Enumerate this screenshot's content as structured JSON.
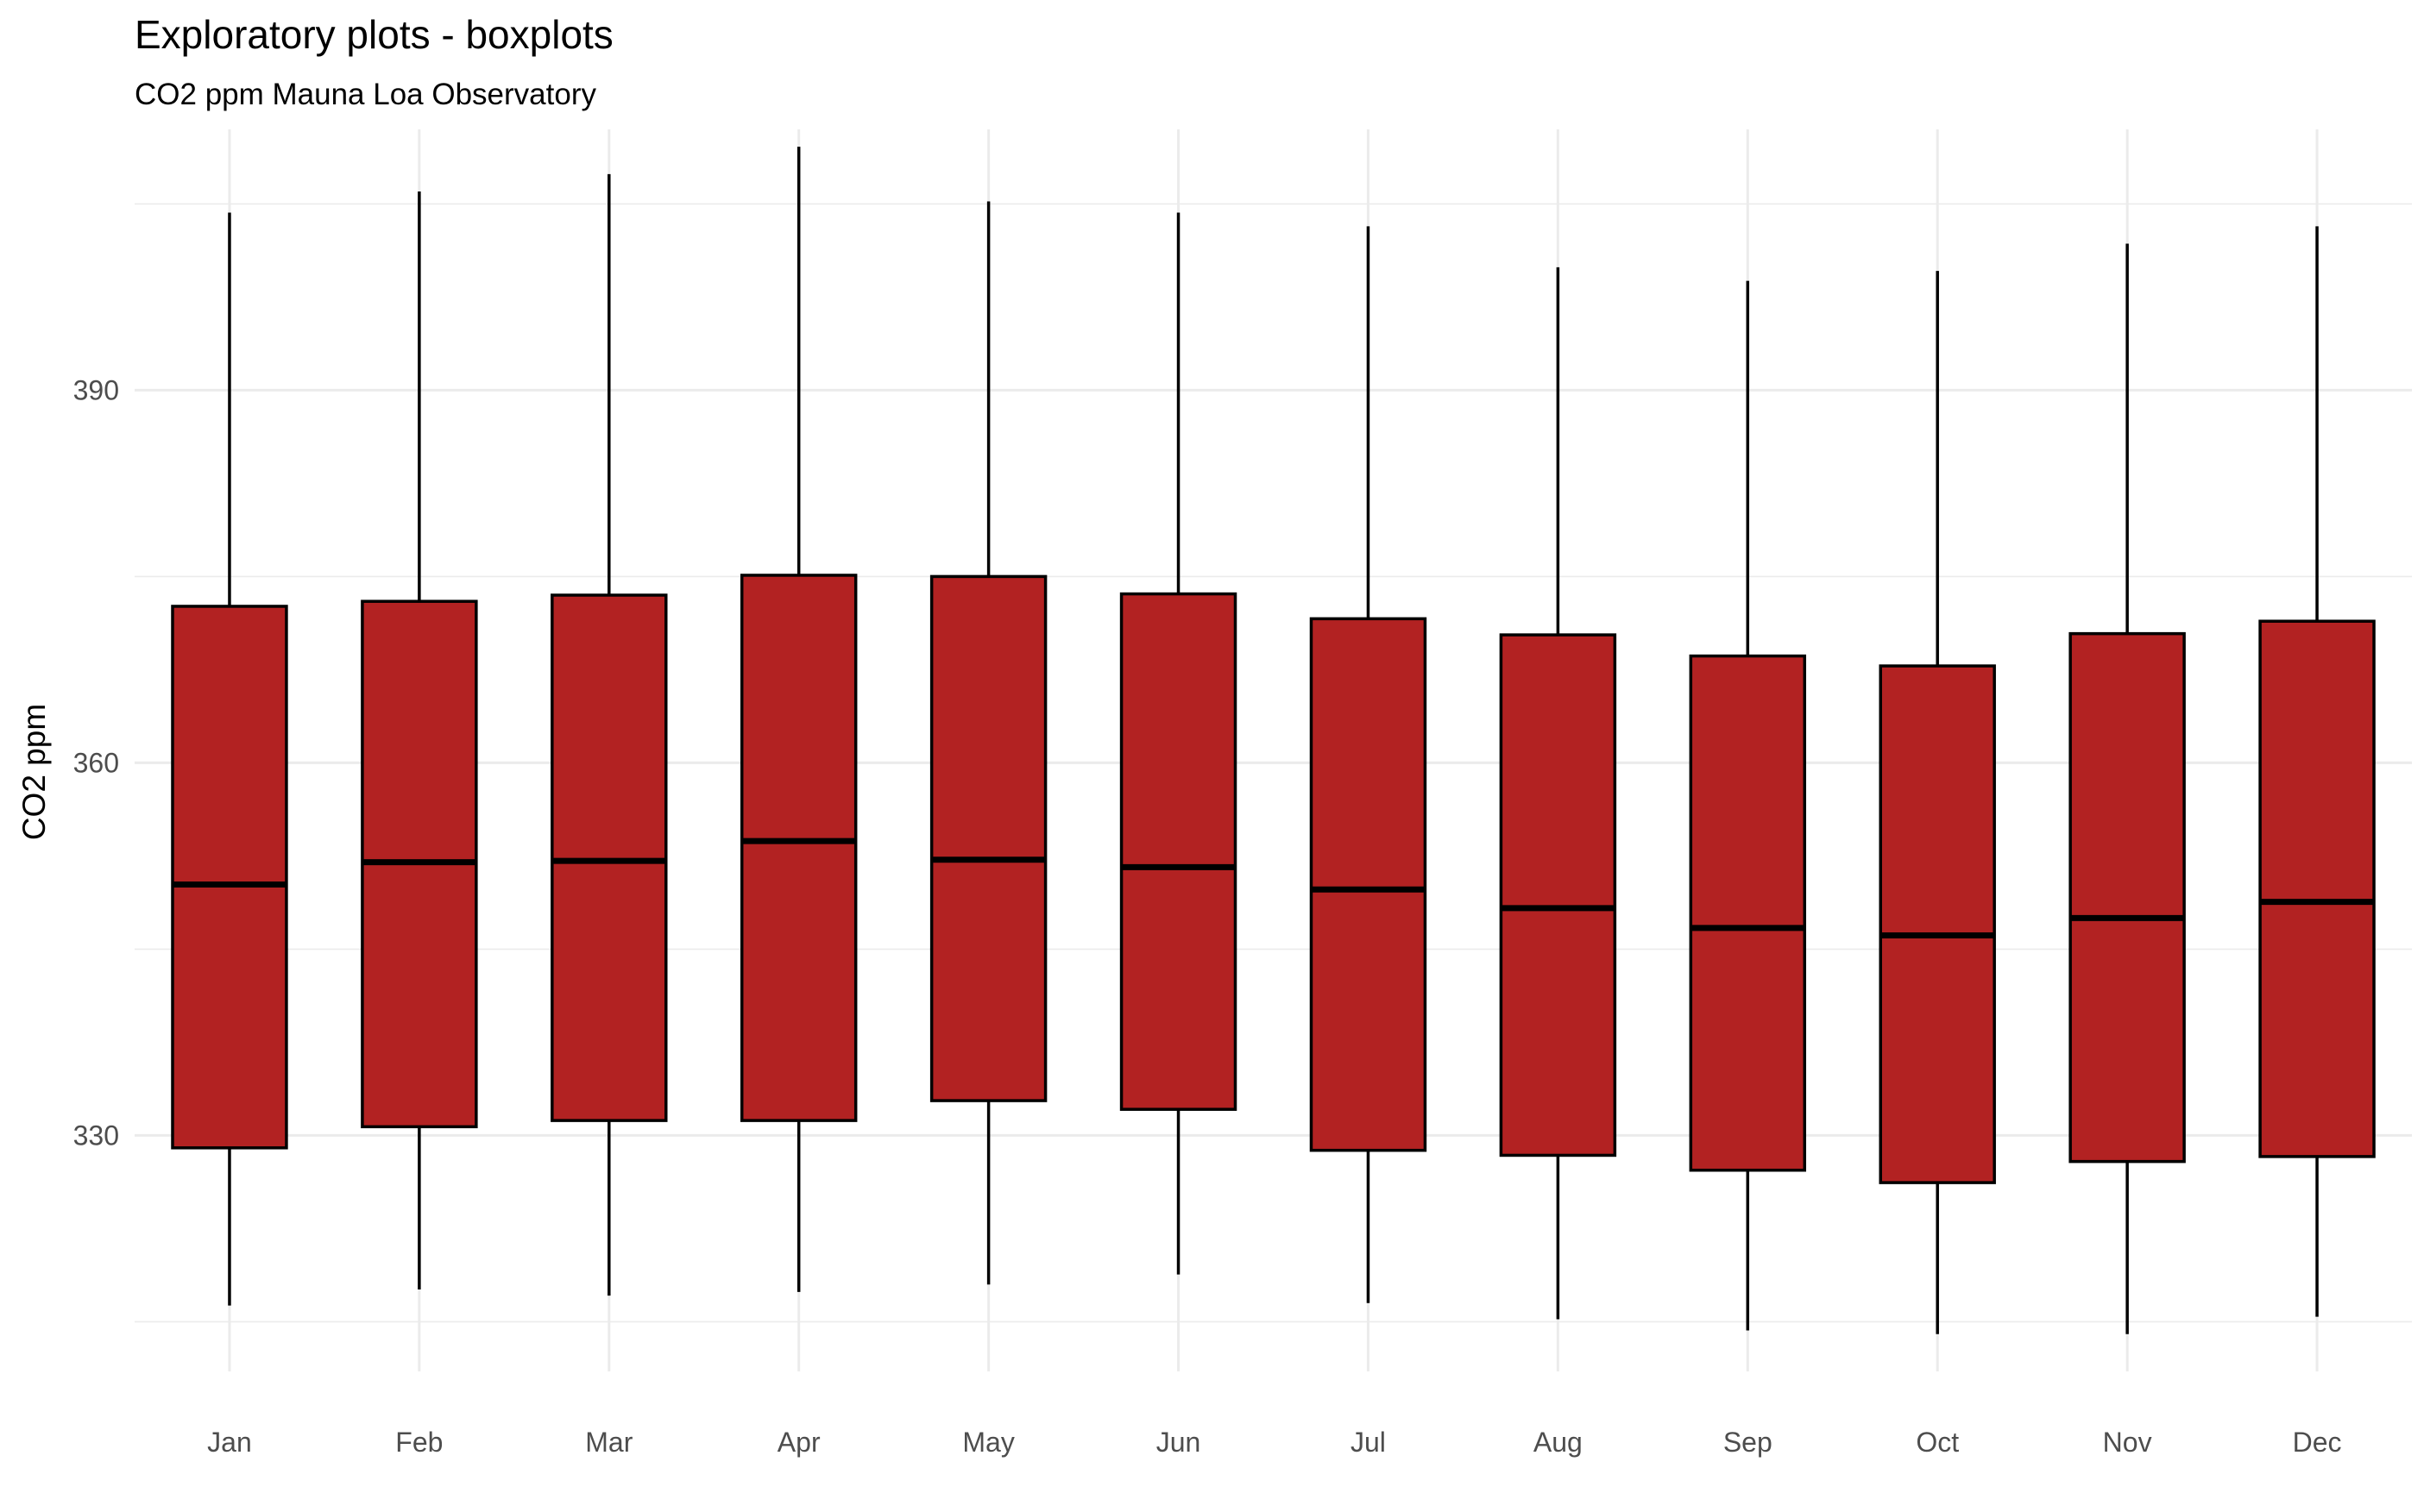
{
  "chart_data": {
    "type": "boxplot",
    "title": "Exploratory plots - boxplots",
    "subtitle": "CO2 ppm Mauna Loa Observatory",
    "xlabel": "",
    "ylabel": "CO2 ppm",
    "ylim": [
      311,
      411
    ],
    "yticks": [
      330,
      360,
      390
    ],
    "grid": true,
    "fill_color": "#b22222",
    "outline_color": "#000000",
    "grid_color": "#ebebeb",
    "categories": [
      "Jan",
      "Feb",
      "Mar",
      "Apr",
      "May",
      "Jun",
      "Jul",
      "Aug",
      "Sep",
      "Oct",
      "Nov",
      "Dec"
    ],
    "boxes": [
      {
        "min": 316.3,
        "q1": 329.0,
        "median": 350.2,
        "q3": 372.6,
        "max": 404.3
      },
      {
        "min": 317.6,
        "q1": 330.7,
        "median": 352.0,
        "q3": 373.0,
        "max": 406.0
      },
      {
        "min": 317.1,
        "q1": 331.2,
        "median": 352.1,
        "q3": 373.5,
        "max": 407.4
      },
      {
        "min": 317.4,
        "q1": 331.2,
        "median": 353.7,
        "q3": 375.1,
        "max": 409.6
      },
      {
        "min": 318.0,
        "q1": 332.8,
        "median": 352.2,
        "q3": 375.0,
        "max": 405.2
      },
      {
        "min": 318.8,
        "q1": 332.1,
        "median": 351.6,
        "q3": 373.6,
        "max": 404.3
      },
      {
        "min": 316.5,
        "q1": 328.8,
        "median": 349.8,
        "q3": 371.6,
        "max": 403.2
      },
      {
        "min": 315.2,
        "q1": 328.4,
        "median": 348.3,
        "q3": 370.3,
        "max": 399.9
      },
      {
        "min": 314.3,
        "q1": 327.2,
        "median": 346.7,
        "q3": 368.6,
        "max": 398.8
      },
      {
        "min": 314.0,
        "q1": 326.2,
        "median": 346.1,
        "q3": 367.8,
        "max": 399.6
      },
      {
        "min": 314.0,
        "q1": 327.9,
        "median": 347.5,
        "q3": 370.4,
        "max": 401.8
      },
      {
        "min": 315.4,
        "q1": 328.3,
        "median": 348.8,
        "q3": 371.4,
        "max": 403.2
      }
    ]
  }
}
